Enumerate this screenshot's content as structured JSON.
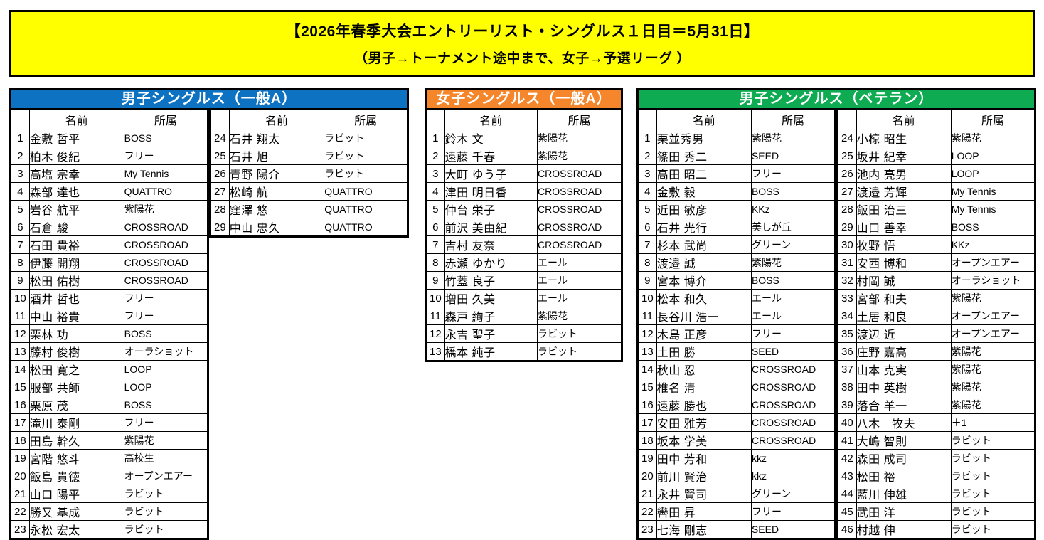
{
  "banner": {
    "title": "【2026年春季大会エントリーリスト・シングルス１日目＝5月31日】",
    "subtitle": "（男子→トーナメント途中まで、女子→予選リーグ ）",
    "background": "#FFFF00"
  },
  "columns": {
    "name": "名前",
    "affiliation": "所属"
  },
  "tables": [
    {
      "id": "mens-singles-general-a",
      "title": "男子シングルス（一般A）",
      "header_color": "#0D72C1",
      "left": [
        {
          "no": "1",
          "name": "金敷 哲平",
          "affiliation": "BOSS"
        },
        {
          "no": "2",
          "name": "柏木 俊紀",
          "affiliation": "フリー"
        },
        {
          "no": "3",
          "name": "高塩 宗幸",
          "affiliation": "My Tennis"
        },
        {
          "no": "4",
          "name": "森部 達也",
          "affiliation": "QUATTRO"
        },
        {
          "no": "5",
          "name": "岩谷 航平",
          "affiliation": "紫陽花"
        },
        {
          "no": "6",
          "name": "石倉 駿",
          "affiliation": "CROSSROAD"
        },
        {
          "no": "7",
          "name": "石田 貴裕",
          "affiliation": "CROSSROAD"
        },
        {
          "no": "8",
          "name": "伊藤 開翔",
          "affiliation": "CROSSROAD"
        },
        {
          "no": "9",
          "name": "松田 佑樹",
          "affiliation": "CROSSROAD"
        },
        {
          "no": "10",
          "name": "酒井 哲也",
          "affiliation": "フリー"
        },
        {
          "no": "11",
          "name": "中山 裕貴",
          "affiliation": "フリー"
        },
        {
          "no": "12",
          "name": "栗林 功",
          "affiliation": "BOSS"
        },
        {
          "no": "13",
          "name": "藤村 俊樹",
          "affiliation": "オーラショット"
        },
        {
          "no": "14",
          "name": "松田 寛之",
          "affiliation": "LOOP"
        },
        {
          "no": "15",
          "name": "服部 共師",
          "affiliation": "LOOP"
        },
        {
          "no": "16",
          "name": "栗原 茂",
          "affiliation": "BOSS"
        },
        {
          "no": "17",
          "name": "滝川 泰剛",
          "affiliation": "フリー"
        },
        {
          "no": "18",
          "name": "田島 幹久",
          "affiliation": "紫陽花"
        },
        {
          "no": "19",
          "name": "宮階 悠斗",
          "affiliation": "高校生"
        },
        {
          "no": "20",
          "name": "飯島 貴徳",
          "affiliation": "オープンエアー"
        },
        {
          "no": "21",
          "name": "山口 陽平",
          "affiliation": "ラビット"
        },
        {
          "no": "22",
          "name": "勝又 基成",
          "affiliation": "ラビット"
        },
        {
          "no": "23",
          "name": "永松 宏太",
          "affiliation": "ラビット"
        }
      ],
      "right": [
        {
          "no": "24",
          "name": "石井 翔太",
          "affiliation": "ラビット"
        },
        {
          "no": "25",
          "name": "石井 旭",
          "affiliation": "ラビット"
        },
        {
          "no": "26",
          "name": "青野 陽介",
          "affiliation": "ラビット"
        },
        {
          "no": "27",
          "name": "松崎 航",
          "affiliation": "QUATTRO"
        },
        {
          "no": "28",
          "name": "窪澤 悠",
          "affiliation": "QUATTRO"
        },
        {
          "no": "29",
          "name": "中山 忠久",
          "affiliation": "QUATTRO"
        }
      ]
    },
    {
      "id": "womens-singles-general-a",
      "title": "女子シングルス（一般A）",
      "header_color": "#F5862B",
      "left": [
        {
          "no": "1",
          "name": "鈴木 文",
          "affiliation": "紫陽花"
        },
        {
          "no": "2",
          "name": "遠藤 千春",
          "affiliation": "紫陽花"
        },
        {
          "no": "3",
          "name": "大町 ゆう子",
          "affiliation": "CROSSROAD"
        },
        {
          "no": "4",
          "name": "津田 明日香",
          "affiliation": "CROSSROAD"
        },
        {
          "no": "5",
          "name": "仲台 栄子",
          "affiliation": "CROSSROAD"
        },
        {
          "no": "6",
          "name": "前沢 美由紀",
          "affiliation": "CROSSROAD"
        },
        {
          "no": "7",
          "name": "吉村 友奈",
          "affiliation": "CROSSROAD"
        },
        {
          "no": "8",
          "name": "赤瀬 ゆかり",
          "affiliation": "エール"
        },
        {
          "no": "9",
          "name": "竹蓋 良子",
          "affiliation": "エール"
        },
        {
          "no": "10",
          "name": "増田 久美",
          "affiliation": "エール"
        },
        {
          "no": "11",
          "name": "森戸 絢子",
          "affiliation": "紫陽花"
        },
        {
          "no": "12",
          "name": "永吉 聖子",
          "affiliation": "ラビット"
        },
        {
          "no": "13",
          "name": "橋本 純子",
          "affiliation": "ラビット"
        }
      ]
    },
    {
      "id": "mens-singles-veteran",
      "title": "男子シングルス（ベテラン）",
      "header_color": "#0EAB53",
      "left": [
        {
          "no": "1",
          "name": "栗並秀男",
          "affiliation": "紫陽花"
        },
        {
          "no": "2",
          "name": "篠田 秀二",
          "affiliation": "SEED"
        },
        {
          "no": "3",
          "name": "高田 昭二",
          "affiliation": "フリー"
        },
        {
          "no": "4",
          "name": "金敷 毅",
          "affiliation": "BOSS"
        },
        {
          "no": "5",
          "name": "近田 敏彦",
          "affiliation": "KKz"
        },
        {
          "no": "6",
          "name": "石井 光行",
          "affiliation": "美しが丘"
        },
        {
          "no": "7",
          "name": "杉本 武尚",
          "affiliation": "グリーン"
        },
        {
          "no": "8",
          "name": "渡邉 誠",
          "affiliation": "紫陽花"
        },
        {
          "no": "9",
          "name": "宮本 博介",
          "affiliation": "BOSS"
        },
        {
          "no": "10",
          "name": "松本 和久",
          "affiliation": "エール"
        },
        {
          "no": "11",
          "name": "長谷川 浩一",
          "affiliation": "エール"
        },
        {
          "no": "12",
          "name": "木島 正彦",
          "affiliation": "フリー"
        },
        {
          "no": "13",
          "name": "土田 勝",
          "affiliation": "SEED"
        },
        {
          "no": "14",
          "name": "秋山 忍",
          "affiliation": "CROSSROAD"
        },
        {
          "no": "15",
          "name": "椎名 清",
          "affiliation": "CROSSROAD"
        },
        {
          "no": "16",
          "name": "遠藤 勝也",
          "affiliation": "CROSSROAD"
        },
        {
          "no": "17",
          "name": "安田 雅芳",
          "affiliation": "CROSSROAD"
        },
        {
          "no": "18",
          "name": "坂本 学美",
          "affiliation": "CROSSROAD"
        },
        {
          "no": "19",
          "name": "田中 芳和",
          "affiliation": "kkz"
        },
        {
          "no": "20",
          "name": "前川 賢治",
          "affiliation": "kkz"
        },
        {
          "no": "21",
          "name": "永井 賢司",
          "affiliation": "グリーン"
        },
        {
          "no": "22",
          "name": "轡田 昇",
          "affiliation": "フリー"
        },
        {
          "no": "23",
          "name": "七海 剛志",
          "affiliation": "SEED"
        }
      ],
      "right": [
        {
          "no": "24",
          "name": "小椋 昭生",
          "affiliation": "紫陽花"
        },
        {
          "no": "25",
          "name": "坂井 紀幸",
          "affiliation": "LOOP"
        },
        {
          "no": "26",
          "name": "池内 亮男",
          "affiliation": "LOOP"
        },
        {
          "no": "27",
          "name": "渡邉 芳輝",
          "affiliation": "My Tennis"
        },
        {
          "no": "28",
          "name": "飯田 治三",
          "affiliation": "My Tennis"
        },
        {
          "no": "29",
          "name": "山口 善幸",
          "affiliation": "BOSS"
        },
        {
          "no": "30",
          "name": "牧野 悟",
          "affiliation": "KKz"
        },
        {
          "no": "31",
          "name": "安西 博和",
          "affiliation": "オープンエアー"
        },
        {
          "no": "32",
          "name": "村岡 誠",
          "affiliation": "オーラショット"
        },
        {
          "no": "33",
          "name": "宮部 和夫",
          "affiliation": "紫陽花"
        },
        {
          "no": "34",
          "name": "土居 和良",
          "affiliation": "オープンエアー"
        },
        {
          "no": "35",
          "name": "渡辺 近",
          "affiliation": "オープンエアー"
        },
        {
          "no": "36",
          "name": "庄野 嘉高",
          "affiliation": "紫陽花"
        },
        {
          "no": "37",
          "name": "山本 克実",
          "affiliation": "紫陽花"
        },
        {
          "no": "38",
          "name": "田中 英樹",
          "affiliation": "紫陽花"
        },
        {
          "no": "39",
          "name": "落合 羊一",
          "affiliation": "紫陽花"
        },
        {
          "no": "40",
          "name": "八木　牧夫",
          "affiliation": "＋1"
        },
        {
          "no": "41",
          "name": "大嶋 智則",
          "affiliation": "ラビット"
        },
        {
          "no": "42",
          "name": "森田 成司",
          "affiliation": "ラビット"
        },
        {
          "no": "43",
          "name": "松田 裕",
          "affiliation": "ラビット"
        },
        {
          "no": "44",
          "name": "藍川 伸雄",
          "affiliation": "ラビット"
        },
        {
          "no": "45",
          "name": "武田 洋",
          "affiliation": "ラビット"
        },
        {
          "no": "46",
          "name": "村越 伸",
          "affiliation": "ラビット"
        }
      ]
    }
  ]
}
